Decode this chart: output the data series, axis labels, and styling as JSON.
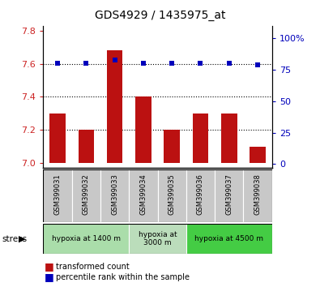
{
  "title": "GDS4929 / 1435975_at",
  "samples": [
    "GSM399031",
    "GSM399032",
    "GSM399033",
    "GSM399034",
    "GSM399035",
    "GSM399036",
    "GSM399037",
    "GSM399038"
  ],
  "bar_values": [
    7.3,
    7.2,
    7.68,
    7.4,
    7.2,
    7.3,
    7.3,
    7.1
  ],
  "percentile_values": [
    80,
    80,
    83,
    80,
    80,
    80,
    80,
    79
  ],
  "bar_bottom": 7.0,
  "ylim_left": [
    6.97,
    7.83
  ],
  "ylim_right": [
    -3,
    110
  ],
  "yticks_left": [
    7.0,
    7.2,
    7.4,
    7.6,
    7.8
  ],
  "yticks_right": [
    0,
    25,
    50,
    75,
    100
  ],
  "bar_color": "#BB1111",
  "dot_color": "#0000BB",
  "bg_color": "#FFFFFF",
  "ylabel_left_color": "#CC2222",
  "ylabel_right_color": "#0000CC",
  "stress_groups": [
    {
      "label": "hypoxia at 1400 m",
      "indices": [
        0,
        1,
        2
      ],
      "color": "#AADDAA"
    },
    {
      "label": "hypoxia at\n3000 m",
      "indices": [
        3,
        4
      ],
      "color": "#BBDDBB"
    },
    {
      "label": "hypoxia at 4500 m",
      "indices": [
        5,
        6,
        7
      ],
      "color": "#44CC44"
    }
  ],
  "legend_bar_label": "transformed count",
  "legend_dot_label": "percentile rank within the sample",
  "stress_label": "stress",
  "right_ytick_labels": [
    "0",
    "25",
    "50",
    "75",
    "100%"
  ],
  "gridline_vals": [
    7.2,
    7.4,
    7.6
  ],
  "tick_bg_color": "#C8C8C8"
}
